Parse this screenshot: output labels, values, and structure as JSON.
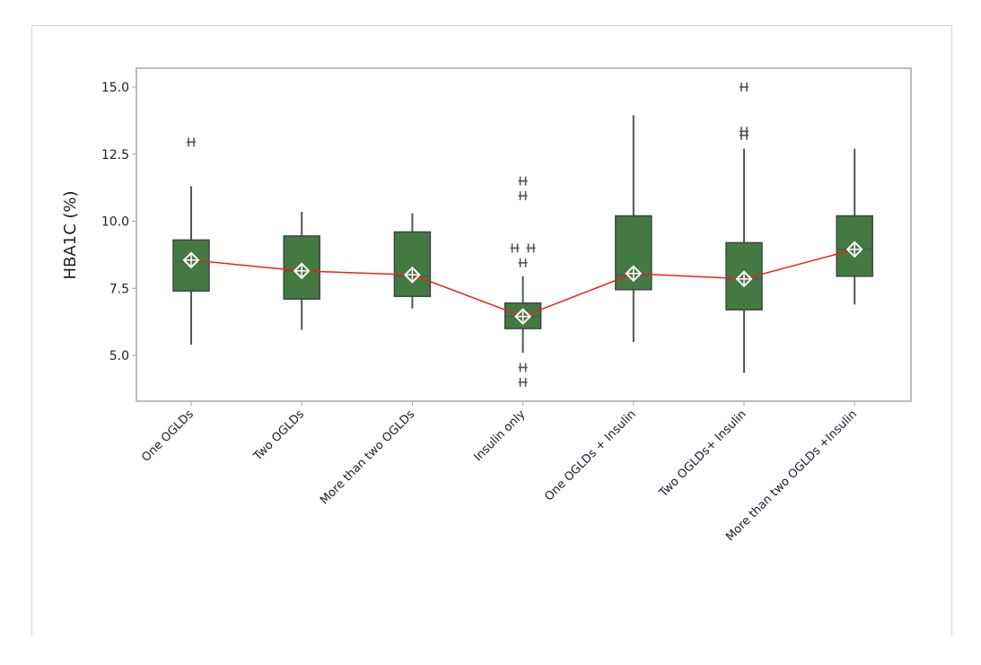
{
  "chart_data": {
    "type": "boxplot",
    "title": "",
    "xlabel": "",
    "ylabel": "HBA1C (%)",
    "ylim": [
      3.3,
      15.7
    ],
    "yticks": [
      "5.0",
      "7.5",
      "10.0",
      "12.5",
      "15.0"
    ],
    "grid": false,
    "box_color": "#437a41",
    "mean_line_color": "#e8231f",
    "categories": [
      "One OGLDs",
      "Two OGLDs",
      "More than two OGLDs",
      "Insulin only",
      "One OGLDs + Insulin",
      "Two OGLDs+ Insulin",
      "More than two OGLDs +Insulin"
    ],
    "boxes": [
      {
        "whisker_low": 5.4,
        "q1": 7.4,
        "median": 8.5,
        "q3": 9.3,
        "whisker_high": 11.3,
        "mean": 8.55,
        "outliers": [
          12.95
        ]
      },
      {
        "whisker_low": 5.95,
        "q1": 7.1,
        "median": 8.15,
        "q3": 9.45,
        "whisker_high": 10.35,
        "mean": 8.15,
        "outliers": []
      },
      {
        "whisker_low": 6.75,
        "q1": 7.2,
        "median": 7.95,
        "q3": 9.6,
        "whisker_high": 10.3,
        "mean": 8.0,
        "outliers": []
      },
      {
        "whisker_low": 5.1,
        "q1": 6.0,
        "median": 6.45,
        "q3": 6.95,
        "whisker_high": 7.95,
        "mean": 6.45,
        "outliers": [
          11.5,
          10.95,
          9.0,
          9.0,
          8.45,
          4.55,
          4.0
        ]
      },
      {
        "whisker_low": 5.5,
        "q1": 7.45,
        "median": 8.0,
        "q3": 10.2,
        "whisker_high": 13.95,
        "mean": 8.05,
        "outliers": []
      },
      {
        "whisker_low": 4.35,
        "q1": 6.7,
        "median": 7.85,
        "q3": 9.2,
        "whisker_high": 12.7,
        "mean": 7.85,
        "outliers": [
          15.0,
          13.35,
          13.2
        ]
      },
      {
        "whisker_low": 6.9,
        "q1": 7.95,
        "median": 8.95,
        "q3": 10.2,
        "whisker_high": 12.7,
        "mean": 8.95,
        "outliers": []
      }
    ]
  }
}
